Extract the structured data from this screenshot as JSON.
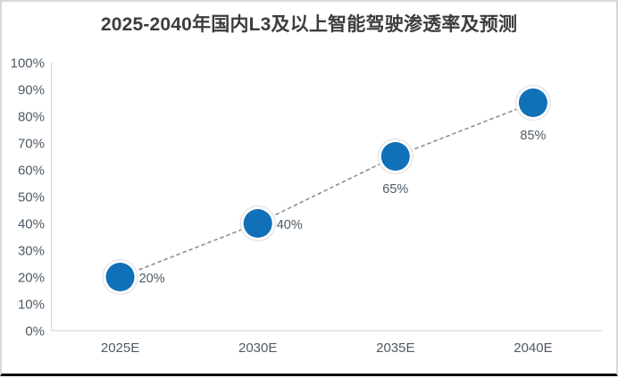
{
  "card": {
    "title": "2025-2040年国内L3及以上智能驾驶渗透率及预测"
  },
  "chart_data": {
    "type": "line",
    "title": "2025-2040年国内L3及以上智能驾驶渗透率及预测",
    "xlabel": "",
    "ylabel": "",
    "categories": [
      "2025E",
      "2030E",
      "2035E",
      "2040E"
    ],
    "values": [
      20,
      40,
      65,
      85
    ],
    "points": [
      {
        "category": "2025E",
        "value": 20,
        "label": "20%",
        "label_position": "right"
      },
      {
        "category": "2030E",
        "value": 40,
        "label": "40%",
        "label_position": "right"
      },
      {
        "category": "2035E",
        "value": 65,
        "label": "65%",
        "label_position": "below"
      },
      {
        "category": "2040E",
        "value": 85,
        "label": "85%",
        "label_position": "below"
      }
    ],
    "ylim": [
      0,
      100
    ],
    "y_tick_values": [
      0,
      10,
      20,
      30,
      40,
      50,
      60,
      70,
      80,
      90,
      100
    ],
    "y_tick_labels": [
      "0%",
      "10%",
      "20%",
      "30%",
      "40%",
      "50%",
      "60%",
      "70%",
      "80%",
      "90%",
      "100%"
    ],
    "grid": false,
    "legend": "none",
    "line_style": "dashed",
    "colors": {
      "marker_fill": "#1070B8",
      "marker_ring": "#ffffff",
      "marker_ring_edge": "#dedede",
      "trend_line": "#8f8f8f",
      "axis_line": "#d9d9d9",
      "tick_label": "#4e5a66",
      "data_label": "#4e5a66",
      "title": "#3d3d3d"
    }
  }
}
